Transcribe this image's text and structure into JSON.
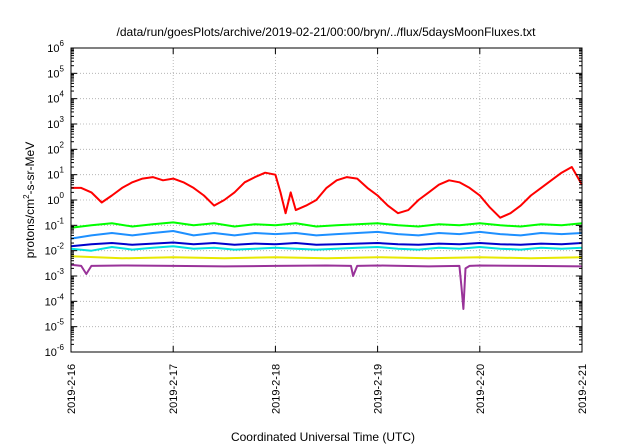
{
  "chart_data": {
    "type": "line",
    "title": "/data/run/goesPlots/archive/2019-02-21/00:00/bryn/../flux/5daysMoonFluxes.txt",
    "xlabel": "Coordinated Universal Time (UTC)",
    "ylabel": {
      "pre": "protons/cm",
      "sup": "2",
      "post": "-s-sr-MeV"
    },
    "x_unit": "days",
    "x_ticks": [
      {
        "label": "2019-2-16",
        "value": 0
      },
      {
        "label": "2019-2-17",
        "value": 1
      },
      {
        "label": "2019-2-18",
        "value": 2
      },
      {
        "label": "2019-2-19",
        "value": 3
      },
      {
        "label": "2019-2-20",
        "value": 4
      },
      {
        "label": "2019-2-21",
        "value": 5
      }
    ],
    "xlim": [
      0,
      5
    ],
    "yscale": "log",
    "ylim": [
      1e-06,
      1000000
    ],
    "y_ticks": [
      {
        "base": "10",
        "exp": "6",
        "value": 6
      },
      {
        "base": "10",
        "exp": "5",
        "value": 5
      },
      {
        "base": "10",
        "exp": "4",
        "value": 4
      },
      {
        "base": "10",
        "exp": "3",
        "value": 3
      },
      {
        "base": "10",
        "exp": "2",
        "value": 2
      },
      {
        "base": "10",
        "exp": "1",
        "value": 1
      },
      {
        "base": "10",
        "exp": "0",
        "value": 0
      },
      {
        "base": "10",
        "exp": "-1",
        "value": -1
      },
      {
        "base": "10",
        "exp": "-2",
        "value": -2
      },
      {
        "base": "10",
        "exp": "-3",
        "value": -3
      },
      {
        "base": "10",
        "exp": "-4",
        "value": -4
      },
      {
        "base": "10",
        "exp": "-5",
        "value": -5
      },
      {
        "base": "10",
        "exp": "-6",
        "value": -6
      }
    ],
    "grid": true,
    "legend": "none",
    "series": [
      {
        "color": "#ff0000",
        "x": [
          0,
          0.1,
          0.2,
          0.3,
          0.4,
          0.5,
          0.6,
          0.7,
          0.8,
          0.9,
          1,
          1.1,
          1.2,
          1.3,
          1.4,
          1.5,
          1.6,
          1.7,
          1.8,
          1.9,
          2,
          2.05,
          2.1,
          2.15,
          2.2,
          2.3,
          2.4,
          2.5,
          2.6,
          2.7,
          2.8,
          2.9,
          3,
          3.1,
          3.2,
          3.3,
          3.4,
          3.5,
          3.6,
          3.7,
          3.8,
          3.9,
          4,
          4.1,
          4.2,
          4.3,
          4.4,
          4.5,
          4.6,
          4.7,
          4.8,
          4.9,
          5
        ],
        "y": [
          3,
          3,
          2,
          0.8,
          1.5,
          3,
          5,
          7,
          8,
          6,
          7,
          5,
          3,
          1.5,
          0.6,
          1,
          2,
          5,
          8,
          12,
          10,
          2,
          0.3,
          2,
          0.4,
          0.6,
          1,
          3,
          6,
          8,
          7,
          3,
          1.5,
          0.6,
          0.3,
          0.4,
          1,
          2,
          4,
          6,
          5,
          3,
          1.5,
          0.5,
          0.2,
          0.3,
          0.6,
          1.5,
          3,
          6,
          12,
          20,
          4
        ]
      },
      {
        "color": "#00ff00",
        "x": [
          0,
          0.2,
          0.4,
          0.6,
          0.8,
          1,
          1.2,
          1.4,
          1.6,
          1.8,
          2,
          2.2,
          2.4,
          2.6,
          2.8,
          3,
          3.2,
          3.4,
          3.6,
          3.8,
          4,
          4.2,
          4.4,
          4.6,
          4.8,
          5
        ],
        "y": [
          0.08,
          0.1,
          0.12,
          0.09,
          0.11,
          0.13,
          0.1,
          0.12,
          0.09,
          0.11,
          0.1,
          0.12,
          0.09,
          0.1,
          0.11,
          0.12,
          0.1,
          0.09,
          0.11,
          0.1,
          0.12,
          0.1,
          0.09,
          0.11,
          0.1,
          0.12
        ]
      },
      {
        "color": "#1e90ff",
        "x": [
          0,
          0.2,
          0.4,
          0.6,
          0.8,
          1,
          1.2,
          1.4,
          1.6,
          1.8,
          2,
          2.2,
          2.4,
          2.6,
          2.8,
          3,
          3.2,
          3.4,
          3.6,
          3.8,
          4,
          4.2,
          4.4,
          4.6,
          4.8,
          5
        ],
        "y": [
          0.03,
          0.04,
          0.05,
          0.04,
          0.05,
          0.06,
          0.04,
          0.05,
          0.04,
          0.05,
          0.045,
          0.05,
          0.04,
          0.045,
          0.05,
          0.055,
          0.045,
          0.04,
          0.05,
          0.045,
          0.055,
          0.045,
          0.04,
          0.05,
          0.045,
          0.05
        ]
      },
      {
        "color": "#00e0e0",
        "x": [
          0,
          0.2,
          0.4,
          0.6,
          0.8,
          1,
          1.2,
          1.4,
          1.6,
          1.8,
          2,
          2.2,
          2.4,
          2.6,
          2.8,
          3,
          3.2,
          3.4,
          3.6,
          3.8,
          4,
          4.2,
          4.4,
          4.6,
          4.8,
          5
        ],
        "y": [
          0.012,
          0.01,
          0.014,
          0.011,
          0.013,
          0.015,
          0.012,
          0.013,
          0.011,
          0.012,
          0.013,
          0.012,
          0.011,
          0.012,
          0.013,
          0.014,
          0.012,
          0.011,
          0.013,
          0.012,
          0.014,
          0.012,
          0.011,
          0.013,
          0.012,
          0.013
        ]
      },
      {
        "color": "#0000cc",
        "x": [
          0,
          0.2,
          0.4,
          0.6,
          0.8,
          1,
          1.2,
          1.4,
          1.6,
          1.8,
          2,
          2.2,
          2.4,
          2.6,
          2.8,
          3,
          3.2,
          3.4,
          3.6,
          3.8,
          4,
          4.2,
          4.4,
          4.6,
          4.8,
          5
        ],
        "y": [
          0.015,
          0.018,
          0.02,
          0.017,
          0.019,
          0.021,
          0.018,
          0.02,
          0.017,
          0.019,
          0.018,
          0.02,
          0.017,
          0.018,
          0.019,
          0.02,
          0.018,
          0.017,
          0.019,
          0.018,
          0.02,
          0.018,
          0.017,
          0.019,
          0.018,
          0.02
        ]
      },
      {
        "color": "#e8e800",
        "x": [
          0,
          0.5,
          1,
          1.5,
          2,
          2.5,
          3,
          3.5,
          4,
          4.5,
          5
        ],
        "y": [
          0.006,
          0.005,
          0.0055,
          0.005,
          0.0055,
          0.005,
          0.0055,
          0.005,
          0.0055,
          0.005,
          0.0055
        ]
      },
      {
        "color": "#993399",
        "x": [
          0,
          0.1,
          0.15,
          0.2,
          0.5,
          1,
          1.5,
          2,
          2.5,
          2.74,
          2.76,
          2.8,
          3,
          3.5,
          3.8,
          3.82,
          3.84,
          3.86,
          3.9,
          4,
          4.5,
          5
        ],
        "y": [
          0.0028,
          0.0025,
          0.0012,
          0.0025,
          0.0026,
          0.0025,
          0.0024,
          0.0025,
          0.0026,
          0.0025,
          0.001,
          0.0025,
          0.0026,
          0.0024,
          0.0025,
          0.0004,
          5e-05,
          0.002,
          0.0025,
          0.0026,
          0.0025,
          0.0024
        ]
      }
    ]
  }
}
